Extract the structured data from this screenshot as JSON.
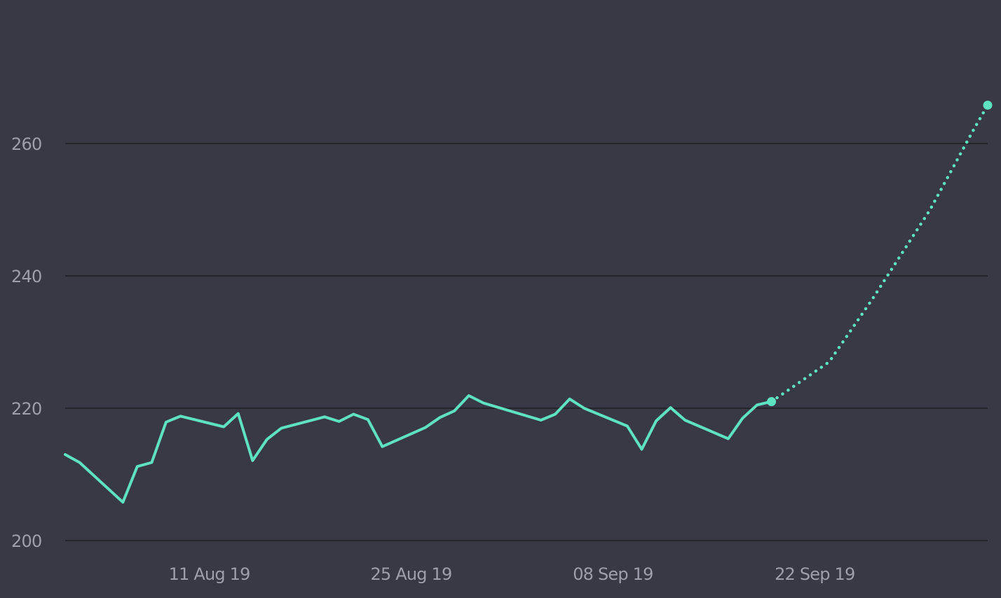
{
  "colors": {
    "background": "#393945",
    "gridline": "#25252c",
    "tick_label": "#9e9eac",
    "series": "#5ee2c0"
  },
  "chart_data": {
    "type": "line",
    "xlabel": "",
    "ylabel": "",
    "xlim": [
      "2019-08-01",
      "2019-10-04"
    ],
    "ylim": [
      200,
      270
    ],
    "grid": "horizontal",
    "legend": "none",
    "y_ticks": [
      {
        "value": 200,
        "label": "200"
      },
      {
        "value": 220,
        "label": "220"
      },
      {
        "value": 240,
        "label": "240"
      },
      {
        "value": 260,
        "label": "260"
      }
    ],
    "x_ticks": [
      {
        "date": "2019-08-11",
        "label": "11 Aug 19"
      },
      {
        "date": "2019-08-25",
        "label": "25 Aug 19"
      },
      {
        "date": "2019-09-08",
        "label": "08 Sep 19"
      },
      {
        "date": "2019-09-22",
        "label": "22 Sep 19"
      }
    ],
    "series": [
      {
        "style": "solid",
        "points": [
          {
            "x": "2019-08-01",
            "y": 213.0
          },
          {
            "x": "2019-08-02",
            "y": 211.8
          },
          {
            "x": "2019-08-05",
            "y": 205.8
          },
          {
            "x": "2019-08-06",
            "y": 211.2
          },
          {
            "x": "2019-08-07",
            "y": 211.8
          },
          {
            "x": "2019-08-08",
            "y": 217.9
          },
          {
            "x": "2019-08-09",
            "y": 218.8
          },
          {
            "x": "2019-08-12",
            "y": 217.2
          },
          {
            "x": "2019-08-13",
            "y": 219.2
          },
          {
            "x": "2019-08-14",
            "y": 212.1
          },
          {
            "x": "2019-08-15",
            "y": 215.3
          },
          {
            "x": "2019-08-16",
            "y": 217.0
          },
          {
            "x": "2019-08-19",
            "y": 218.7
          },
          {
            "x": "2019-08-20",
            "y": 218.0
          },
          {
            "x": "2019-08-21",
            "y": 219.1
          },
          {
            "x": "2019-08-22",
            "y": 218.3
          },
          {
            "x": "2019-08-23",
            "y": 214.2
          },
          {
            "x": "2019-08-26",
            "y": 217.1
          },
          {
            "x": "2019-08-27",
            "y": 218.6
          },
          {
            "x": "2019-08-28",
            "y": 219.6
          },
          {
            "x": "2019-08-29",
            "y": 221.9
          },
          {
            "x": "2019-08-30",
            "y": 220.8
          },
          {
            "x": "2019-09-03",
            "y": 218.2
          },
          {
            "x": "2019-09-04",
            "y": 219.1
          },
          {
            "x": "2019-09-05",
            "y": 221.4
          },
          {
            "x": "2019-09-06",
            "y": 220.0
          },
          {
            "x": "2019-09-09",
            "y": 217.3
          },
          {
            "x": "2019-09-10",
            "y": 213.8
          },
          {
            "x": "2019-09-11",
            "y": 218.1
          },
          {
            "x": "2019-09-12",
            "y": 220.1
          },
          {
            "x": "2019-09-13",
            "y": 218.2
          },
          {
            "x": "2019-09-16",
            "y": 215.4
          },
          {
            "x": "2019-09-17",
            "y": 218.5
          },
          {
            "x": "2019-09-18",
            "y": 220.5
          },
          {
            "x": "2019-09-19",
            "y": 221.0
          }
        ]
      },
      {
        "style": "dotted",
        "points": [
          {
            "x": "2019-09-19",
            "y": 221.0
          },
          {
            "x": "2019-09-23",
            "y": 227.0
          },
          {
            "x": "2019-09-26",
            "y": 236.5
          },
          {
            "x": "2019-09-30",
            "y": 250.0
          },
          {
            "x": "2019-10-03",
            "y": 262.0
          },
          {
            "x": "2019-10-04",
            "y": 265.8
          }
        ]
      }
    ]
  }
}
